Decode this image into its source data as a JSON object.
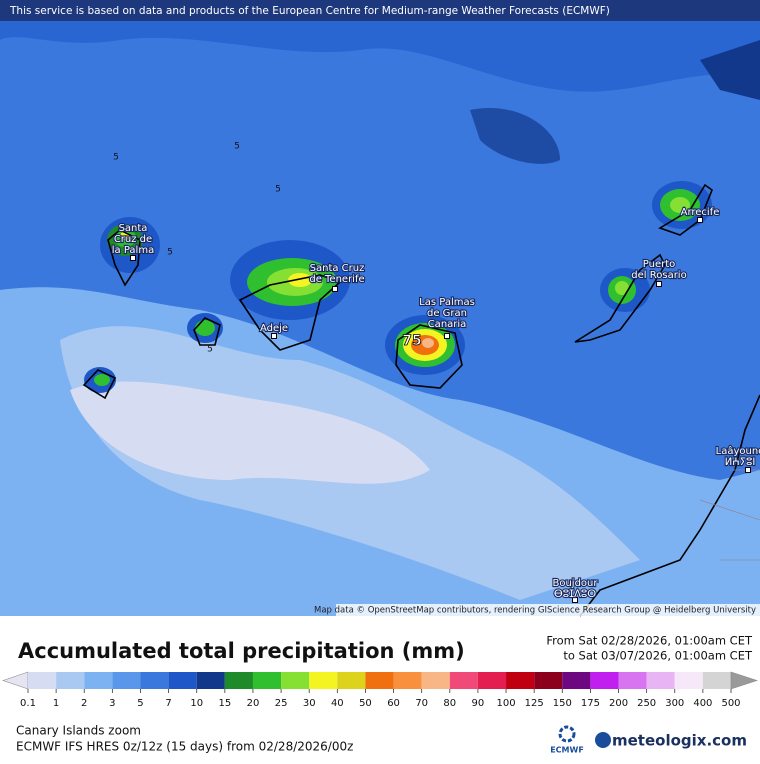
{
  "header": {
    "notice": "This service is based on data and products of the European Centre for Medium-range Weather Forecasts (ECMWF)"
  },
  "map": {
    "places": [
      {
        "lines": [
          "Santa",
          "Cruz de",
          "la Palma"
        ]
      },
      {
        "lines": [
          "Santa Cruz",
          "de Tenerife"
        ]
      },
      {
        "lines": [
          "Adeje"
        ]
      },
      {
        "lines": [
          "Las Palmas",
          "de Gran",
          "Canaria"
        ]
      },
      {
        "lines": [
          "Puerto",
          "del Rosario"
        ]
      },
      {
        "lines": [
          "Arrecife"
        ]
      },
      {
        "lines": [
          "Laâyoune",
          "ⵍⵄⵢⵓⵏ"
        ]
      },
      {
        "lines": [
          "Boujdour",
          "ⴱⵓⵊⴷⵓⵔ"
        ]
      }
    ],
    "contour_labels": [
      "5",
      "5",
      "5",
      "5",
      "5",
      "75"
    ],
    "attribution": "Map data © OpenStreetMap contributors, rendering GIScience Research Group @ Heidelberg University"
  },
  "legend": {
    "title": "Accumulated total precipitation (mm)",
    "period_from": "From Sat 02/28/2026, 01:00am CET",
    "period_to": "to Sat 03/07/2026, 01:00am CET",
    "levels": [
      0.1,
      1,
      2,
      3,
      5,
      7,
      10,
      15,
      20,
      25,
      30,
      40,
      50,
      60,
      70,
      80,
      90,
      100,
      125,
      150,
      175,
      200,
      250,
      300,
      400,
      500
    ],
    "below_color": "#e4e4f2",
    "above_color": "#9a9a9a",
    "colors": [
      "#d6dcf2",
      "#a9c8f2",
      "#7db2f2",
      "#5a96ea",
      "#3a78de",
      "#1e58c8",
      "#12388c",
      "#1f8a2a",
      "#2fbf2f",
      "#86e033",
      "#f4f422",
      "#ddd21c",
      "#f07010",
      "#f8903e",
      "#f8b585",
      "#f04a78",
      "#e41e50",
      "#c00010",
      "#8c001e",
      "#6e0880",
      "#c01ff0",
      "#d874f0",
      "#e8b4f4",
      "#f6e8f8",
      "#d4d4d4"
    ]
  },
  "footer": {
    "region": "Canary Islands zoom",
    "model": "ECMWF IFS HRES 0z/12z (15 days) from  02/28/2026/00z",
    "ecmwf": "ECMWF",
    "brand": "meteologix.com"
  }
}
